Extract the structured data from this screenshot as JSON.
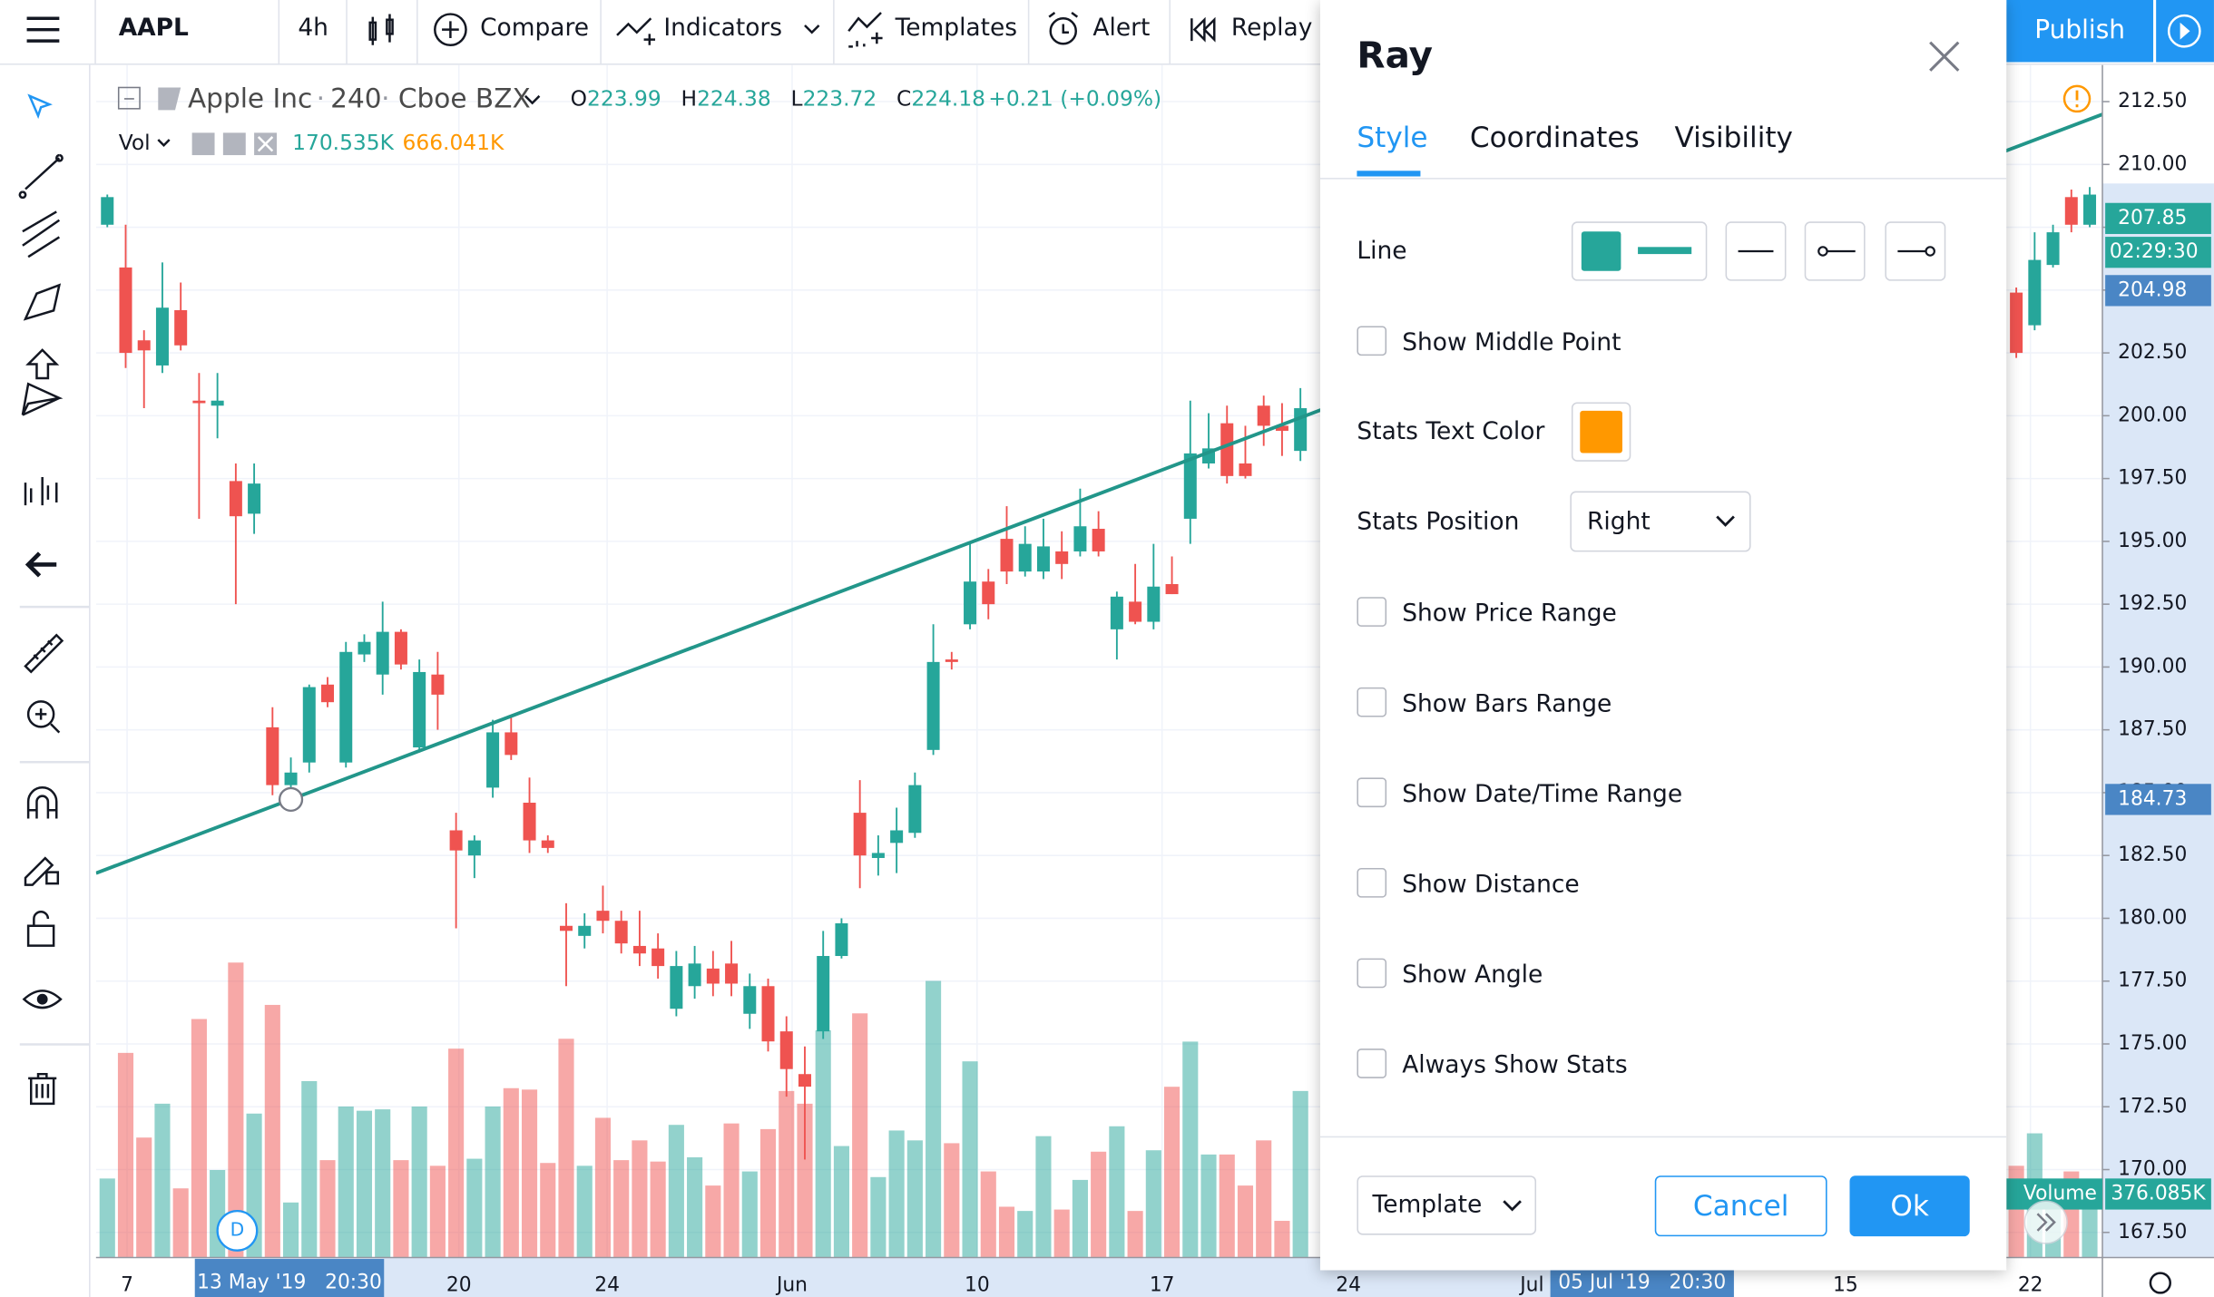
{
  "toolbar": {
    "symbol": "AAPL",
    "interval": "4h",
    "compare": "Compare",
    "indicators": "Indicators",
    "templates": "Templates",
    "alert": "Alert",
    "replay": "Replay",
    "publish": "Publish"
  },
  "legend": {
    "name": "Apple Inc",
    "interval": "240",
    "exchange": "Cboe BZX",
    "ohlc": [
      {
        "key": "O",
        "value": "223.99"
      },
      {
        "key": "H",
        "value": "224.38"
      },
      {
        "key": "L",
        "value": "223.72"
      },
      {
        "key": "C",
        "value": "224.18"
      }
    ],
    "change": "+0.21 (+0.09%)",
    "vol": "Vol",
    "vol_values": [
      "170.535K",
      "666.041K"
    ]
  },
  "chart_data": {
    "type": "candlestick",
    "open": [
      207.6,
      205.9,
      203.0,
      202.0,
      204.2,
      200.6,
      200.4,
      197.4,
      196.1,
      187.6,
      185.3,
      186.2,
      189.3,
      186.2,
      190.5,
      189.7,
      191.4,
      186.8,
      189.7,
      183.5,
      182.5,
      185.2,
      187.4,
      184.6,
      183.1,
      179.7,
      179.3,
      180.3,
      179.9,
      178.9,
      178.8,
      176.4,
      177.3,
      178.0,
      178.2,
      176.2,
      177.3,
      175.5,
      173.8,
      175.5,
      178.5,
      184.2,
      182.4,
      183.0,
      183.4,
      186.7,
      190.3,
      191.7,
      193.4,
      195.1,
      193.8,
      193.8,
      194.6,
      194.6,
      195.5,
      191.5,
      192.6,
      191.8,
      193.3,
      195.9,
      198.1,
      199.7,
      198.1,
      200.4,
      199.6,
      198.6,
      null,
      null,
      null,
      null,
      null,
      null,
      null,
      null,
      null,
      null,
      null,
      null,
      null,
      null,
      null,
      null,
      null,
      null,
      null,
      null,
      null,
      null,
      null,
      null,
      null,
      null,
      null,
      null,
      null,
      null,
      null,
      null,
      null,
      null,
      null,
      null,
      null,
      null,
      204.9,
      203.6,
      206.0,
      208.7,
      207.6
    ],
    "high": [
      208.8,
      207.6,
      203.4,
      206.1,
      205.3,
      201.7,
      201.7,
      198.1,
      198.1,
      188.4,
      186.4,
      189.3,
      189.6,
      191.0,
      191.3,
      192.6,
      191.5,
      190.3,
      190.6,
      184.2,
      183.3,
      187.9,
      188.0,
      185.6,
      183.3,
      180.6,
      180.2,
      181.3,
      180.3,
      180.3,
      179.4,
      178.7,
      178.9,
      178.7,
      179.1,
      177.8,
      177.6,
      176.1,
      174.9,
      179.5,
      180.0,
      185.5,
      183.3,
      184.4,
      185.8,
      191.7,
      190.6,
      194.9,
      193.9,
      196.4,
      195.6,
      195.9,
      195.4,
      197.1,
      196.2,
      193.0,
      194.1,
      194.9,
      194.4,
      200.6,
      200.1,
      200.4,
      199.6,
      200.8,
      200.5,
      201.1,
      null,
      null,
      null,
      null,
      null,
      null,
      null,
      null,
      null,
      null,
      null,
      null,
      null,
      null,
      null,
      null,
      null,
      null,
      null,
      null,
      null,
      null,
      null,
      null,
      null,
      null,
      null,
      null,
      null,
      null,
      null,
      null,
      null,
      null,
      null,
      null,
      null,
      null,
      205.1,
      207.3,
      207.6,
      209.0,
      209.1
    ],
    "low": [
      207.5,
      201.9,
      200.3,
      201.7,
      202.6,
      195.9,
      199.1,
      192.5,
      195.3,
      184.9,
      184.9,
      185.8,
      188.4,
      186.0,
      190.2,
      188.9,
      189.9,
      186.6,
      187.5,
      179.6,
      181.6,
      184.8,
      186.3,
      182.6,
      182.6,
      177.3,
      178.8,
      179.4,
      178.6,
      178.1,
      177.6,
      176.1,
      176.8,
      176.9,
      176.9,
      175.6,
      174.7,
      172.9,
      170.4,
      175.2,
      178.4,
      181.2,
      181.7,
      181.8,
      183.2,
      186.5,
      189.9,
      191.5,
      191.9,
      193.3,
      193.6,
      193.5,
      193.5,
      194.4,
      194.4,
      190.3,
      191.7,
      191.5,
      192.9,
      194.9,
      197.9,
      197.3,
      197.5,
      198.8,
      198.4,
      198.2,
      null,
      null,
      null,
      null,
      null,
      null,
      null,
      null,
      null,
      null,
      null,
      null,
      null,
      null,
      null,
      null,
      null,
      null,
      null,
      null,
      null,
      null,
      null,
      null,
      null,
      null,
      null,
      null,
      null,
      null,
      null,
      null,
      null,
      null,
      null,
      null,
      null,
      null,
      202.3,
      203.4,
      205.9,
      207.3,
      207.5
    ],
    "close": [
      208.7,
      202.5,
      202.6,
      204.3,
      202.8,
      200.5,
      200.6,
      196.0,
      197.3,
      185.3,
      185.8,
      189.2,
      188.6,
      190.6,
      191.0,
      191.4,
      190.1,
      189.8,
      188.9,
      182.7,
      183.1,
      187.4,
      186.5,
      183.1,
      182.8,
      179.5,
      179.7,
      179.9,
      179.0,
      178.6,
      178.1,
      178.1,
      178.2,
      177.4,
      177.4,
      177.3,
      175.1,
      174.0,
      173.3,
      178.5,
      179.8,
      182.5,
      182.6,
      183.5,
      185.3,
      190.2,
      190.2,
      193.4,
      192.5,
      193.8,
      194.9,
      194.8,
      194.1,
      195.6,
      194.6,
      192.8,
      191.8,
      193.2,
      192.9,
      198.5,
      198.7,
      197.6,
      197.6,
      199.6,
      199.4,
      200.3,
      null,
      null,
      null,
      null,
      null,
      null,
      null,
      null,
      null,
      null,
      null,
      null,
      null,
      null,
      null,
      null,
      null,
      null,
      null,
      null,
      null,
      null,
      null,
      null,
      null,
      null,
      null,
      null,
      null,
      null,
      null,
      null,
      null,
      null,
      null,
      null,
      null,
      null,
      202.5,
      206.2,
      207.3,
      207.6,
      208.8
    ],
    "volume": [
      224,
      580,
      340,
      436,
      196,
      676,
      248,
      836,
      408,
      716,
      156,
      500,
      276,
      428,
      416,
      420,
      276,
      428,
      260,
      592,
      280,
      428,
      480,
      476,
      268,
      620,
      260,
      396,
      276,
      332,
      272,
      376,
      284,
      204,
      380,
      244,
      364,
      472,
      436,
      644,
      316,
      692,
      228,
      360,
      332,
      784,
      324,
      556,
      244,
      144,
      132,
      344,
      136,
      220,
      300,
      372,
      132,
      304,
      484,
      612,
      292,
      292,
      204,
      332,
      104,
      472,
      null,
      null,
      null,
      null,
      null,
      null,
      null,
      null,
      null,
      null,
      null,
      null,
      null,
      null,
      null,
      null,
      null,
      null,
      null,
      null,
      null,
      null,
      null,
      null,
      null,
      null,
      null,
      null,
      null,
      null,
      null,
      null,
      null,
      null,
      null,
      null,
      null,
      null,
      260,
      352,
      164,
      244,
      144
    ],
    "up_color": "#26a69a",
    "down_color": "#ef5350",
    "ylim": [
      166.5,
      213.96
    ],
    "yticks": [
      {
        "value": 212.5,
        "label": "212.50"
      },
      {
        "value": 210,
        "label": "210.00"
      },
      {
        "value": 207.5,
        "label": "207.50"
      },
      {
        "value": 205,
        "label": "205.00"
      },
      {
        "value": 202.5,
        "label": "202.50"
      },
      {
        "value": 200,
        "label": "200.00"
      },
      {
        "value": 197.5,
        "label": "197.50"
      },
      {
        "value": 195,
        "label": "195.00"
      },
      {
        "value": 192.5,
        "label": "192.50"
      },
      {
        "value": 190,
        "label": "190.00"
      },
      {
        "value": 187.5,
        "label": "187.50"
      },
      {
        "value": 185,
        "label": "185.00"
      },
      {
        "value": 182.5,
        "label": "182.50"
      },
      {
        "value": 180,
        "label": "180.00"
      },
      {
        "value": 177.5,
        "label": "177.50"
      },
      {
        "value": 175,
        "label": "175.00"
      },
      {
        "value": 172.5,
        "label": "172.50"
      },
      {
        "value": 170,
        "label": "170.00"
      },
      {
        "value": 167.5,
        "label": "167.50"
      }
    ],
    "grid": true,
    "time_labels": [
      "7",
      "20",
      "24",
      "Jun",
      "10",
      "17",
      "24",
      "Jul",
      "15",
      "22"
    ],
    "crosshair_times": [
      "13 May '19   20:30",
      "05 Jul '19   20:30"
    ],
    "price_labels": [
      {
        "value": 207.85,
        "label": "207.85",
        "color": "#26a69a"
      },
      {
        "value": 204.98,
        "label": "204.98",
        "color": "#4a86c5"
      },
      {
        "value": 184.73,
        "label": "184.73",
        "color": "#4a86c5"
      }
    ],
    "countdown": "02:29:30",
    "ray": [
      184.73,
      200.2
    ],
    "ray_color": "#22968a",
    "volume_label": "Volume",
    "volume_value": "376.085K",
    "event_marker": "D"
  },
  "dialog": {
    "title": "Ray",
    "tabs": [
      "Style",
      "Coordinates",
      "Visibility"
    ],
    "line": "Line",
    "stats_text_color": "Stats Text Color",
    "stats_position": "Stats Position",
    "stats_position_value": "Right",
    "options": [
      "Show Middle Point",
      "Show Price Range",
      "Show Bars Range",
      "Show Date/Time Range",
      "Show Distance",
      "Show Angle",
      "Always Show Stats"
    ],
    "template": "Template",
    "cancel": "Cancel",
    "ok": "Ok"
  }
}
